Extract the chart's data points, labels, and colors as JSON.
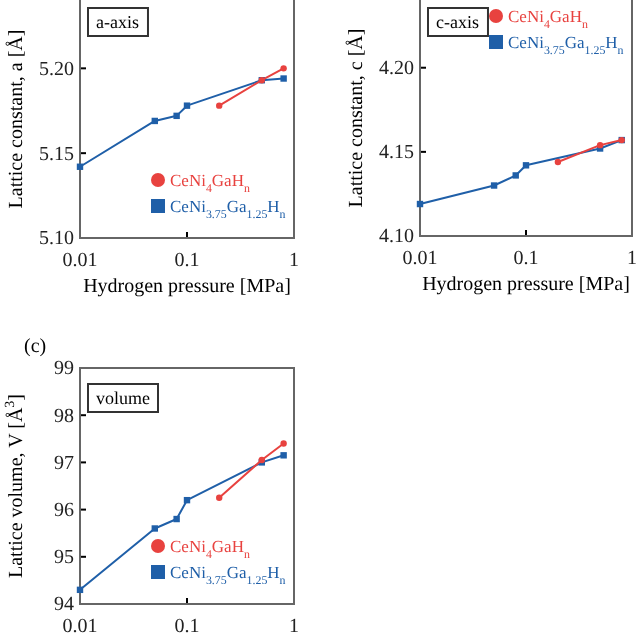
{
  "chart_data": [
    {
      "type": "line",
      "title": "a-axis",
      "xlabel": "Hydrogen pressure [MPa]",
      "ylabel": "Lattice constant, a [Å]",
      "log": "x",
      "xlim": [
        0.01,
        1
      ],
      "xticks": [
        0.01,
        0.1,
        1
      ],
      "ylim": [
        5.1,
        5.245
      ],
      "yticks": [
        {
          "value": 5.1,
          "label": "5.10"
        },
        5.15,
        {
          "value": 5.2,
          "label": "5.20"
        }
      ],
      "legend": "bottom right",
      "series": [
        {
          "name": "CeNi$_{4}$GaH$_{n}$",
          "color": "#e8423f",
          "marker": "circle",
          "x": [
            0.2,
            0.5,
            0.8
          ],
          "values": [
            5.178,
            5.193,
            5.2
          ]
        },
        {
          "name": "CeNi$_{3.75}$Ga$_{1.25}$H$_{n}$",
          "color": "#1f5fa8",
          "marker": "square",
          "x": [
            0.01,
            0.05,
            0.08,
            0.1,
            0.5,
            0.8
          ],
          "values": [
            5.142,
            5.169,
            5.172,
            5.178,
            5.193,
            5.194
          ]
        }
      ]
    },
    {
      "type": "line",
      "title": "c-axis",
      "xlabel": "Hydrogen pressure [MPa]",
      "ylabel": "Lattice constant, c [Å]",
      "log": "x",
      "xlim": [
        0.01,
        1
      ],
      "xticks": [
        0.01,
        0.1,
        1
      ],
      "ylim": [
        4.1,
        4.245
      ],
      "yticks": [
        {
          "value": 4.1,
          "label": "4.10"
        },
        4.15,
        {
          "value": 4.2,
          "label": "4.20"
        }
      ],
      "legend": "top right",
      "series": [
        {
          "name": "CeNi$_{4}$GaH$_{n}$",
          "color": "#e8423f",
          "marker": "circle",
          "x": [
            0.2,
            0.5,
            0.8
          ],
          "values": [
            4.144,
            4.154,
            4.157
          ]
        },
        {
          "name": "CeNi$_{3.75}$Ga$_{1.25}$H$_{n}$",
          "color": "#1f5fa8",
          "marker": "square",
          "x": [
            0.01,
            0.05,
            0.08,
            0.1,
            0.5,
            0.8
          ],
          "values": [
            4.119,
            4.13,
            4.136,
            4.142,
            4.152,
            4.157
          ]
        }
      ]
    },
    {
      "type": "line",
      "title": "volume",
      "annotations": [
        "(c)"
      ],
      "ylabel": "Lattice volume, V [Å$^{3}$]",
      "log": "x",
      "xlim": [
        0.01,
        1
      ],
      "xticks": [
        0.01,
        0.1,
        1
      ],
      "ylim": [
        94,
        99
      ],
      "yticks": [
        94,
        95,
        96,
        97,
        98,
        99
      ],
      "legend": "bottom right",
      "series": [
        {
          "name": "CeNi$_{4}$GaH$_{n}$",
          "color": "#e8423f",
          "marker": "circle",
          "x": [
            0.2,
            0.5,
            0.8
          ],
          "values": [
            96.25,
            97.05,
            97.4
          ]
        },
        {
          "name": "CeNi$_{3.75}$Ga$_{1.25}$H$_{n}$",
          "color": "#1f5fa8",
          "marker": "square",
          "x": [
            0.01,
            0.05,
            0.08,
            0.1,
            0.5,
            0.8
          ],
          "values": [
            94.3,
            95.6,
            95.8,
            96.2,
            97.0,
            97.15
          ]
        }
      ]
    }
  ]
}
